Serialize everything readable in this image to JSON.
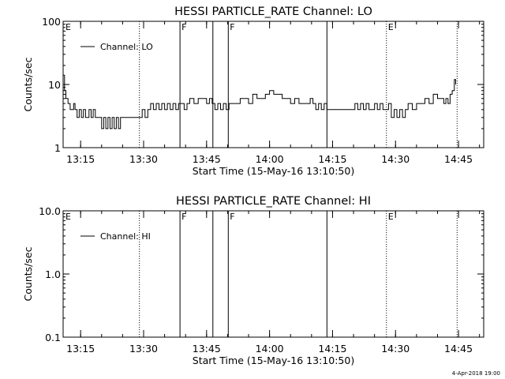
{
  "footer_timestamp": "4-Apr-2018 19:00",
  "chart_data": [
    {
      "type": "line",
      "title": "HESSI PARTICLE_RATE Channel: LO",
      "xlabel": "Start Time (15-May-16 13:10:50)",
      "ylabel": "Counts/sec",
      "yscale": "log",
      "ylim": [
        1,
        100
      ],
      "xlim": [
        "13:10:50",
        "14:51:00"
      ],
      "grid": false,
      "legend": {
        "placement": "top-left",
        "entries": [
          "Channel: LO"
        ]
      },
      "x_ticks": [
        "13:15",
        "13:30",
        "13:45",
        "14:00",
        "14:15",
        "14:30",
        "14:45"
      ],
      "y_ticks": [
        "1",
        "10",
        "100"
      ],
      "markers": [
        {
          "time": "13:10:50",
          "label": "E",
          "style": "edge"
        },
        {
          "time": "13:29:00",
          "label": "",
          "style": "dotted"
        },
        {
          "time": "13:38:40",
          "label": "F",
          "style": "solid"
        },
        {
          "time": "13:46:30",
          "label": "",
          "style": "solid"
        },
        {
          "time": "13:50:10",
          "label": "F",
          "style": "solid"
        },
        {
          "time": "14:13:40",
          "label": "",
          "style": "solid"
        },
        {
          "time": "14:27:50",
          "label": "E",
          "style": "dotted"
        },
        {
          "time": "14:44:40",
          "label": "",
          "style": "dotted"
        }
      ],
      "series": [
        {
          "name": "Channel: LO",
          "x": [
            "13:10:50",
            "13:11:10",
            "13:11:30",
            "13:12:00",
            "13:12:30",
            "13:13:00",
            "13:13:20",
            "13:13:40",
            "13:14:10",
            "13:14:40",
            "13:15:10",
            "13:15:40",
            "13:16:10",
            "13:16:40",
            "13:17:00",
            "13:17:30",
            "13:18:00",
            "13:18:30",
            "13:19:00",
            "13:19:30",
            "13:20:00",
            "13:20:30",
            "13:21:00",
            "13:21:30",
            "13:22:00",
            "13:22:30",
            "13:23:00",
            "13:23:30",
            "13:24:00",
            "13:24:30",
            "13:25:00",
            "13:26:00",
            "13:28:00",
            "13:29:00",
            "13:29:40",
            "13:30:20",
            "13:31:00",
            "13:31:40",
            "13:32:20",
            "13:33:00",
            "13:33:40",
            "13:34:20",
            "13:35:00",
            "13:35:40",
            "13:36:20",
            "13:37:00",
            "13:37:40",
            "13:38:20",
            "13:39:00",
            "13:39:40",
            "13:40:20",
            "13:41:00",
            "13:42:00",
            "13:43:00",
            "13:44:00",
            "13:45:00",
            "13:45:40",
            "13:46:20",
            "13:47:00",
            "13:47:40",
            "13:48:20",
            "13:49:00",
            "13:49:40",
            "13:50:20",
            "13:51:00",
            "13:52:00",
            "13:53:00",
            "13:54:00",
            "13:55:00",
            "13:56:00",
            "13:57:00",
            "13:58:00",
            "13:59:00",
            "14:00:00",
            "14:01:00",
            "14:02:00",
            "14:03:00",
            "14:04:00",
            "14:05:00",
            "14:06:00",
            "14:07:00",
            "14:08:00",
            "14:09:00",
            "14:09:40",
            "14:10:20",
            "14:11:00",
            "14:11:40",
            "14:12:20",
            "14:13:00",
            "14:13:40",
            "14:14:20",
            "14:15:00",
            "14:16:00",
            "14:17:00",
            "14:18:00",
            "14:19:00",
            "14:19:40",
            "14:20:20",
            "14:21:00",
            "14:21:40",
            "14:22:20",
            "14:23:00",
            "14:23:40",
            "14:24:20",
            "14:25:00",
            "14:25:40",
            "14:26:20",
            "14:27:00",
            "14:27:40",
            "14:28:20",
            "14:29:00",
            "14:29:40",
            "14:30:20",
            "14:31:00",
            "14:31:40",
            "14:32:20",
            "14:33:00",
            "14:34:00",
            "14:35:00",
            "14:36:00",
            "14:37:00",
            "14:38:00",
            "14:39:00",
            "14:40:00",
            "14:41:00",
            "14:41:30",
            "14:42:00",
            "14:42:30",
            "14:43:00",
            "14:43:30",
            "14:44:00",
            "14:44:20"
          ],
          "y": [
            14,
            8,
            6,
            5,
            4,
            4,
            5,
            4,
            3,
            4,
            3,
            4,
            3,
            3,
            4,
            3,
            4,
            3,
            3,
            3,
            2,
            3,
            2,
            3,
            2,
            3,
            2,
            3,
            2,
            3,
            3,
            3,
            3,
            3,
            4,
            3,
            4,
            5,
            4,
            5,
            4,
            5,
            4,
            5,
            4,
            5,
            4,
            5,
            5,
            4,
            5,
            6,
            5,
            6,
            6,
            5,
            6,
            5,
            4,
            5,
            4,
            5,
            4,
            5,
            5,
            5,
            6,
            6,
            5,
            7,
            6,
            6,
            7,
            8,
            7,
            7,
            6,
            6,
            5,
            6,
            5,
            5,
            5,
            6,
            5,
            4,
            5,
            4,
            5,
            4,
            4,
            4,
            4,
            4,
            4,
            4,
            4,
            5,
            4,
            5,
            4,
            5,
            4,
            4,
            5,
            4,
            5,
            4,
            4,
            5,
            3,
            4,
            3,
            4,
            3,
            4,
            5,
            4,
            5,
            5,
            6,
            5,
            7,
            6,
            6,
            5,
            6,
            5,
            7,
            8,
            12,
            10
          ]
        }
      ]
    },
    {
      "type": "line",
      "title": "HESSI PARTICLE_RATE Channel: HI",
      "xlabel": "Start Time (15-May-16 13:10:50)",
      "ylabel": "Counts/sec",
      "yscale": "log",
      "ylim": [
        0.1,
        10.0
      ],
      "xlim": [
        "13:10:50",
        "14:51:00"
      ],
      "grid": false,
      "legend": {
        "placement": "top-left",
        "entries": [
          "Channel: HI"
        ]
      },
      "x_ticks": [
        "13:15",
        "13:30",
        "13:45",
        "14:00",
        "14:15",
        "14:30",
        "14:45"
      ],
      "y_ticks": [
        "0.1",
        "1.0",
        "10.0"
      ],
      "markers": [
        {
          "time": "13:10:50",
          "label": "E",
          "style": "edge"
        },
        {
          "time": "13:29:00",
          "label": "",
          "style": "dotted"
        },
        {
          "time": "13:38:40",
          "label": "F",
          "style": "solid"
        },
        {
          "time": "13:46:30",
          "label": "",
          "style": "solid"
        },
        {
          "time": "13:50:10",
          "label": "F",
          "style": "solid"
        },
        {
          "time": "14:13:40",
          "label": "",
          "style": "solid"
        },
        {
          "time": "14:27:50",
          "label": "E",
          "style": "dotted"
        },
        {
          "time": "14:44:40",
          "label": "",
          "style": "dotted"
        }
      ],
      "series": [
        {
          "name": "Channel: HI",
          "x": [],
          "y": []
        }
      ]
    }
  ]
}
